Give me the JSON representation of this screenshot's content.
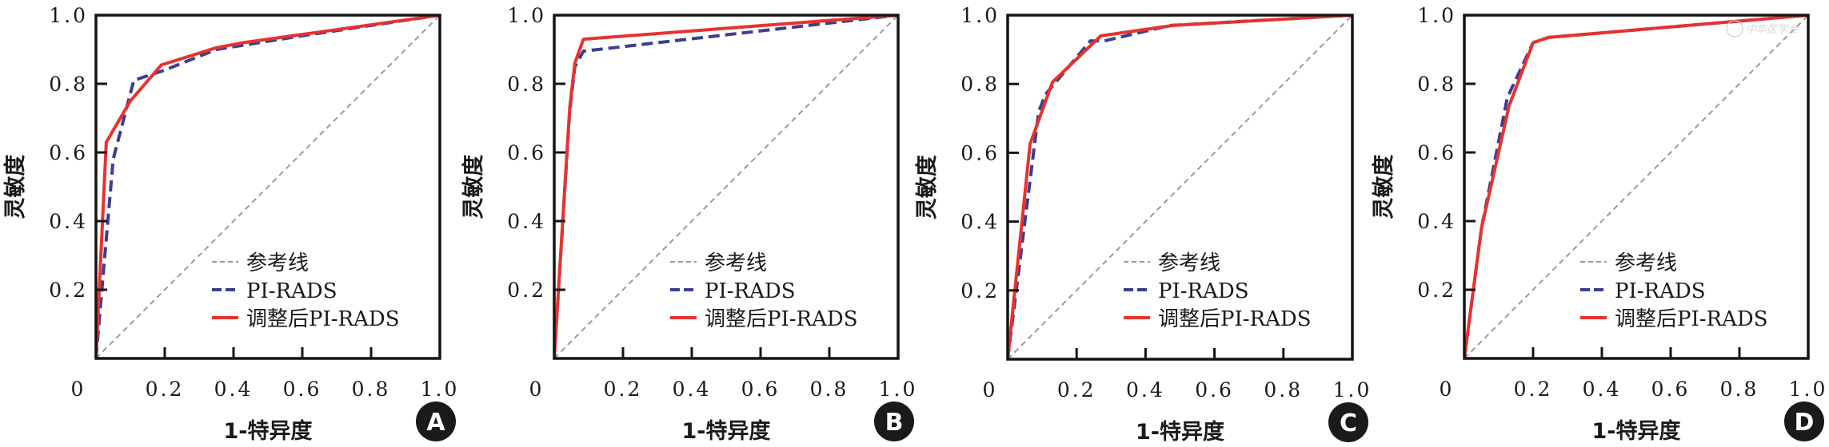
{
  "chart_data": [
    {
      "type": "line",
      "panel_label": "A",
      "xlabel": "1-特异度",
      "ylabel": "灵敏度",
      "xlim": [
        0,
        1
      ],
      "ylim": [
        0,
        1
      ],
      "x_ticks": [
        "0",
        "0.2",
        "0.4",
        "0.6",
        "0.8",
        "1.0"
      ],
      "y_ticks": [
        "0.2",
        "0.4",
        "0.6",
        "0.8",
        "1.0"
      ],
      "grid": false,
      "legend_position": "bottom-right",
      "series": [
        {
          "name": "参考线",
          "style": "dashed-thin",
          "color": "#a09a96",
          "points": [
            [
              0,
              0
            ],
            [
              1,
              1
            ]
          ]
        },
        {
          "name": "PI-RADS",
          "style": "dashed",
          "color": "#3a3f8f",
          "points": [
            [
              0,
              0
            ],
            [
              0.05,
              0.58
            ],
            [
              0.11,
              0.81
            ],
            [
              0.2,
              0.84
            ],
            [
              0.35,
              0.9
            ],
            [
              0.6,
              0.94
            ],
            [
              1,
              1
            ]
          ]
        },
        {
          "name": "调整后PI-RADS",
          "style": "solid",
          "color": "#e8322f",
          "points": [
            [
              0,
              0
            ],
            [
              0.03,
              0.63
            ],
            [
              0.1,
              0.75
            ],
            [
              0.19,
              0.855
            ],
            [
              0.35,
              0.905
            ],
            [
              0.43,
              0.92
            ],
            [
              1,
              1
            ]
          ]
        }
      ]
    },
    {
      "type": "line",
      "panel_label": "B",
      "xlabel": "1-特异度",
      "ylabel": "灵敏度",
      "xlim": [
        0,
        1
      ],
      "ylim": [
        0,
        1
      ],
      "x_ticks": [
        "0",
        "0.2",
        "0.4",
        "0.6",
        "0.8",
        "1.0"
      ],
      "y_ticks": [
        "0.2",
        "0.4",
        "0.6",
        "0.8",
        "1.0"
      ],
      "grid": false,
      "legend_position": "bottom-right",
      "series": [
        {
          "name": "参考线",
          "style": "dashed-thin",
          "color": "#a09a96",
          "points": [
            [
              0,
              0
            ],
            [
              1,
              1
            ]
          ]
        },
        {
          "name": "PI-RADS",
          "style": "dashed",
          "color": "#3a3f8f",
          "points": [
            [
              0,
              0
            ],
            [
              0.045,
              0.72
            ],
            [
              0.06,
              0.85
            ],
            [
              0.085,
              0.895
            ],
            [
              1,
              1
            ]
          ]
        },
        {
          "name": "调整后PI-RADS",
          "style": "solid",
          "color": "#e8322f",
          "points": [
            [
              0,
              0
            ],
            [
              0.045,
              0.73
            ],
            [
              0.06,
              0.86
            ],
            [
              0.085,
              0.93
            ],
            [
              1,
              1
            ]
          ]
        }
      ]
    },
    {
      "type": "line",
      "panel_label": "C",
      "xlabel": "1-特异度",
      "ylabel": "灵敏度",
      "xlim": [
        0,
        1
      ],
      "ylim": [
        0,
        1
      ],
      "x_ticks": [
        "0",
        "0.2",
        "0.4",
        "0.6",
        "0.8",
        "1.0"
      ],
      "y_ticks": [
        "0.2",
        "0.4",
        "0.6",
        "0.8",
        "1.0"
      ],
      "grid": false,
      "legend_position": "bottom-right",
      "series": [
        {
          "name": "参考线",
          "style": "dashed-thin",
          "color": "#a09a96",
          "points": [
            [
              0,
              0
            ],
            [
              1,
              1
            ]
          ]
        },
        {
          "name": "PI-RADS",
          "style": "dashed",
          "color": "#3a3f8f",
          "points": [
            [
              0,
              0
            ],
            [
              0.09,
              0.72
            ],
            [
              0.11,
              0.77
            ],
            [
              0.24,
              0.925
            ],
            [
              0.28,
              0.925
            ],
            [
              0.47,
              0.97
            ],
            [
              1,
              1
            ]
          ]
        },
        {
          "name": "调整后PI-RADS",
          "style": "solid",
          "color": "#e8322f",
          "points": [
            [
              0,
              0
            ],
            [
              0.065,
              0.625
            ],
            [
              0.13,
              0.805
            ],
            [
              0.27,
              0.94
            ],
            [
              0.48,
              0.97
            ],
            [
              1,
              1
            ]
          ]
        }
      ]
    },
    {
      "type": "line",
      "panel_label": "D",
      "xlabel": "1-特异度",
      "ylabel": "灵敏度",
      "xlim": [
        0,
        1
      ],
      "ylim": [
        0,
        1
      ],
      "x_ticks": [
        "0",
        "0.2",
        "0.4",
        "0.6",
        "0.8",
        "1.0"
      ],
      "y_ticks": [
        "0.2",
        "0.4",
        "0.6",
        "0.8",
        "1.0"
      ],
      "grid": false,
      "legend_position": "bottom-right",
      "series": [
        {
          "name": "参考线",
          "style": "dashed-thin",
          "color": "#a09a96",
          "points": [
            [
              0,
              0
            ],
            [
              1,
              1
            ]
          ]
        },
        {
          "name": "PI-RADS",
          "style": "dashed",
          "color": "#3a3f8f",
          "points": [
            [
              0,
              0
            ],
            [
              0.05,
              0.38
            ],
            [
              0.125,
              0.76
            ],
            [
              0.2,
              0.92
            ],
            [
              0.245,
              0.935
            ],
            [
              1,
              1
            ]
          ]
        },
        {
          "name": "调整后PI-RADS",
          "style": "solid",
          "color": "#e8322f",
          "points": [
            [
              0,
              0
            ],
            [
              0.05,
              0.38
            ],
            [
              0.13,
              0.735
            ],
            [
              0.2,
              0.92
            ],
            [
              0.245,
              0.935
            ],
            [
              1,
              1
            ]
          ]
        }
      ]
    }
  ],
  "watermark": {
    "text": "中华医学会",
    "panel_label": "D"
  }
}
